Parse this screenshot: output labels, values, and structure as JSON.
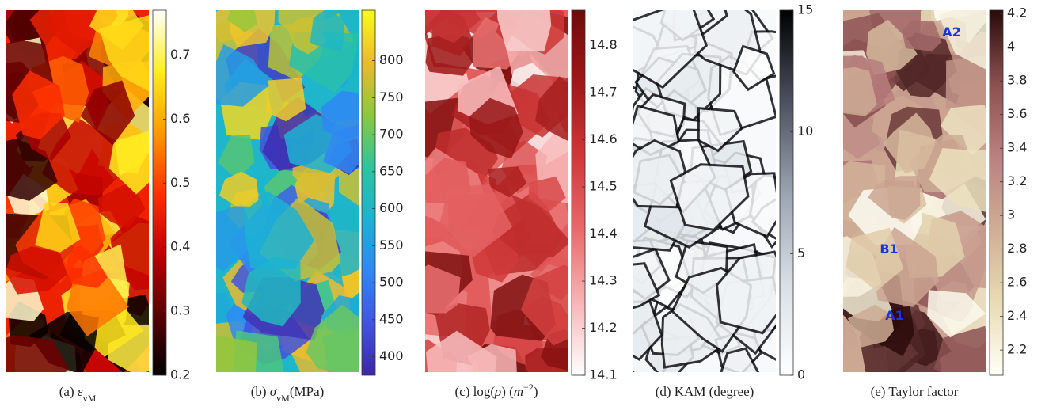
{
  "chart_data": [
    {
      "type": "colormap",
      "caption": [
        {
          "text": "(a) "
        },
        {
          "text": "ε",
          "italic": true
        },
        {
          "text": "vM",
          "sub": true
        }
      ],
      "ylim": [
        0.2,
        0.77
      ],
      "yticks": [
        0.2,
        0.3,
        0.4,
        0.5,
        0.6,
        0.7
      ],
      "colormap": [
        "#000000",
        "#5a0000",
        "#c00000",
        "#ff3000",
        "#ff9a00",
        "#ffee20",
        "#ffffff"
      ]
    },
    {
      "type": "colormap",
      "caption": [
        {
          "text": "(b) "
        },
        {
          "text": "σ",
          "italic": true
        },
        {
          "text": "vM",
          "sub": true
        },
        {
          "text": "(MPa)"
        }
      ],
      "ylim": [
        375,
        868
      ],
      "yticks": [
        400,
        450,
        500,
        550,
        600,
        650,
        700,
        750,
        800
      ],
      "colormap": [
        "#3e26a8",
        "#4154e0",
        "#2f88f5",
        "#1cb2d2",
        "#2ec59c",
        "#8dc83d",
        "#ecba2f",
        "#f9fb15"
      ]
    },
    {
      "type": "colormap",
      "caption": [
        {
          "text": "(c) log("
        },
        {
          "text": "ρ",
          "italic": true
        },
        {
          "text": ") ("
        },
        {
          "text": "m",
          "italic": true
        },
        {
          "text": "−2",
          "sup": true
        },
        {
          "text": ")"
        }
      ],
      "ylim": [
        14.1,
        14.875
      ],
      "yticks": [
        14.1,
        14.2,
        14.3,
        14.4,
        14.5,
        14.6,
        14.7,
        14.8
      ],
      "colormap": [
        "#ffffff",
        "#f7b5b5",
        "#e86a6a",
        "#d03838",
        "#a01818",
        "#6e0a0a"
      ]
    },
    {
      "type": "colormap",
      "caption": [
        {
          "text": "(d) KAM (degree)"
        }
      ],
      "ylim": [
        0,
        15
      ],
      "yticks": [
        0,
        5,
        10,
        15
      ],
      "colormap": [
        "#ffffff",
        "#d8e0e6",
        "#9aa4b0",
        "#4d5060",
        "#000000"
      ]
    },
    {
      "type": "colormap",
      "caption": [
        {
          "text": "(e) Taylor factor"
        }
      ],
      "ylim": [
        2.05,
        4.22
      ],
      "yticks": [
        2.2,
        2.4,
        2.6,
        2.8,
        3,
        3.2,
        3.4,
        3.6,
        3.8,
        4,
        4.2
      ],
      "colormap": [
        "#fffff8",
        "#e8dcb4",
        "#cfae96",
        "#b98080",
        "#8a5050",
        "#2a0a0a"
      ],
      "annotations": [
        "A2",
        "B1",
        "A1"
      ]
    }
  ]
}
